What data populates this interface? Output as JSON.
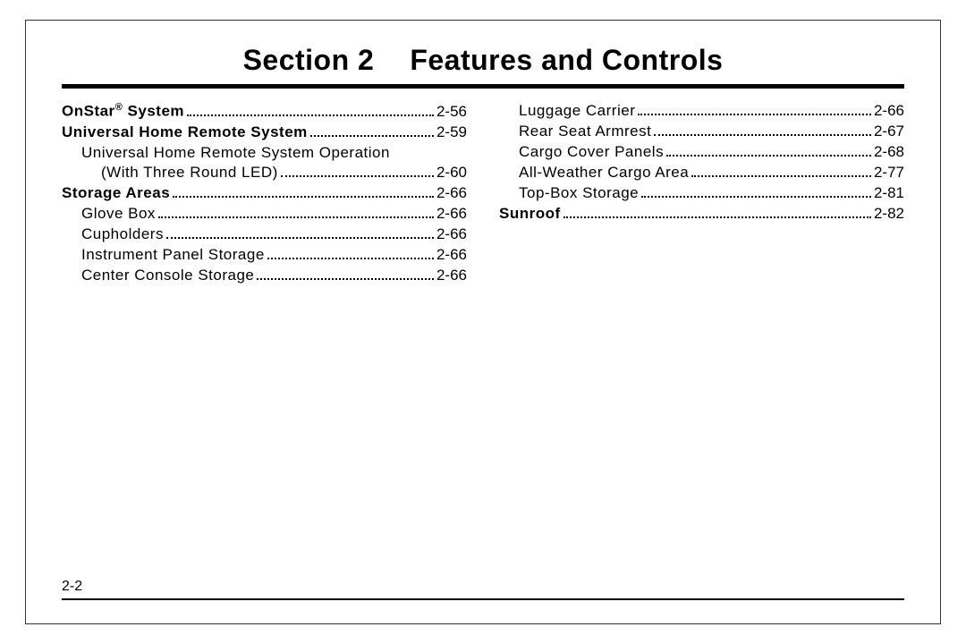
{
  "title_section": "Section 2",
  "title_name": "Features and Controls",
  "page_number": "2-2",
  "left": [
    {
      "label": "OnStar",
      "sup": "®",
      "label2": " System",
      "page": "2-56",
      "bold": true,
      "indent": 0
    },
    {
      "label": "Universal Home Remote System",
      "page": "2-59",
      "bold": true,
      "indent": 0
    },
    {
      "label": "Universal Home Remote System Operation",
      "page": "",
      "bold": false,
      "indent": 1,
      "noDots": true
    },
    {
      "label": "(With Three Round LED)",
      "page": "2-60",
      "bold": false,
      "indent": 2
    },
    {
      "label": "Storage Areas",
      "page": "2-66",
      "bold": true,
      "indent": 0
    },
    {
      "label": "Glove Box",
      "page": "2-66",
      "bold": false,
      "indent": 1
    },
    {
      "label": "Cupholders",
      "page": "2-66",
      "bold": false,
      "indent": 1
    },
    {
      "label": "Instrument Panel Storage",
      "page": "2-66",
      "bold": false,
      "indent": 1
    },
    {
      "label": "Center Console Storage",
      "page": "2-66",
      "bold": false,
      "indent": 1
    }
  ],
  "right": [
    {
      "label": "Luggage Carrier",
      "page": "2-66",
      "bold": false,
      "indent": 1
    },
    {
      "label": "Rear Seat Armrest",
      "page": "2-67",
      "bold": false,
      "indent": 1
    },
    {
      "label": "Cargo Cover Panels",
      "page": "2-68",
      "bold": false,
      "indent": 1
    },
    {
      "label": "All-Weather Cargo Area",
      "page": "2-77",
      "bold": false,
      "indent": 1
    },
    {
      "label": "Top-Box Storage",
      "page": "2-81",
      "bold": false,
      "indent": 1
    },
    {
      "label": "Sunroof",
      "page": "2-82",
      "bold": true,
      "indent": 0
    }
  ]
}
